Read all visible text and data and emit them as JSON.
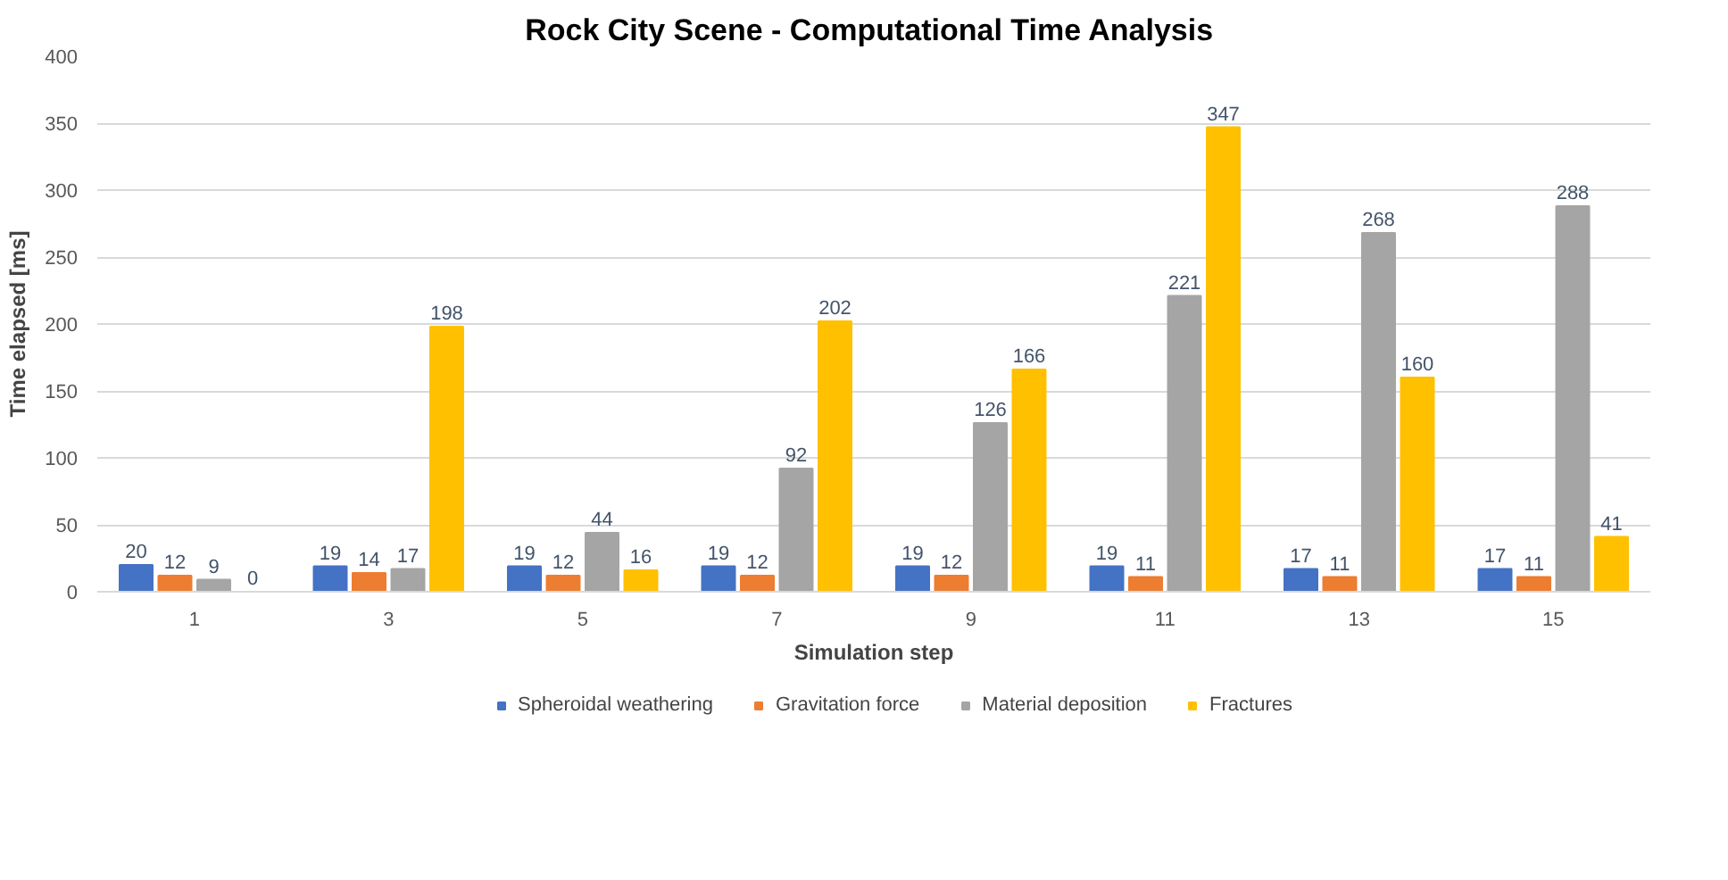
{
  "chart_data": {
    "type": "bar",
    "title": "Rock City Scene - Computational  Time Analysis",
    "xlabel": "Simulation step",
    "ylabel": "Time elapsed [ms]",
    "categories": [
      "1",
      "3",
      "5",
      "7",
      "9",
      "11",
      "13",
      "15"
    ],
    "series": [
      {
        "name": "Spheroidal weathering",
        "color": "#4472c4",
        "values": [
          20,
          19,
          19,
          19,
          19,
          19,
          17,
          17
        ]
      },
      {
        "name": "Gravitation force",
        "color": "#ed7d31",
        "values": [
          12,
          14,
          12,
          12,
          12,
          11,
          11,
          11
        ]
      },
      {
        "name": "Material deposition",
        "color": "#a5a5a5",
        "values": [
          9,
          17,
          44,
          92,
          126,
          221,
          268,
          288
        ]
      },
      {
        "name": "Fractures",
        "color": "#ffc000",
        "values": [
          0,
          198,
          16,
          202,
          166,
          347,
          160,
          41
        ]
      }
    ],
    "ylim": [
      0,
      400
    ],
    "yticks": [
      0,
      50,
      100,
      150,
      200,
      250,
      300,
      350,
      400
    ],
    "grid": "y",
    "legend": "bottom",
    "data_labels": true
  }
}
